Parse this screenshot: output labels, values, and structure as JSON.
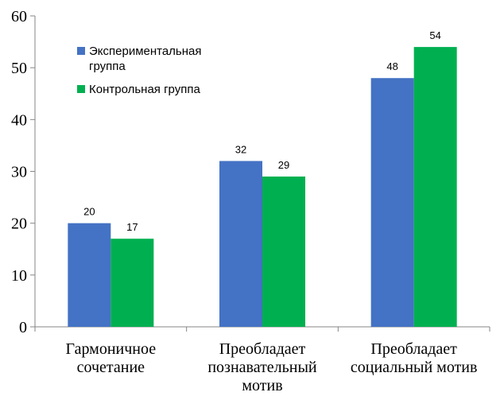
{
  "chart_data": {
    "type": "bar",
    "categories": [
      [
        "Гармоничное",
        "сочетание"
      ],
      [
        "Преобладает",
        "познавательный",
        "мотив"
      ],
      [
        "Преобладает",
        "социальный мотив"
      ]
    ],
    "series": [
      {
        "name": [
          "Экспериментальная",
          "группа"
        ],
        "color": "#4472C4",
        "values": [
          20,
          32,
          48
        ]
      },
      {
        "name": [
          "Контрольная группа"
        ],
        "color": "#00B050",
        "values": [
          17,
          29,
          54
        ]
      }
    ],
    "ylim": [
      0,
      60
    ],
    "yticks": [
      0,
      10,
      20,
      30,
      40,
      50,
      60
    ],
    "grid": false,
    "legend_position": "top-left",
    "data_labels": true
  }
}
